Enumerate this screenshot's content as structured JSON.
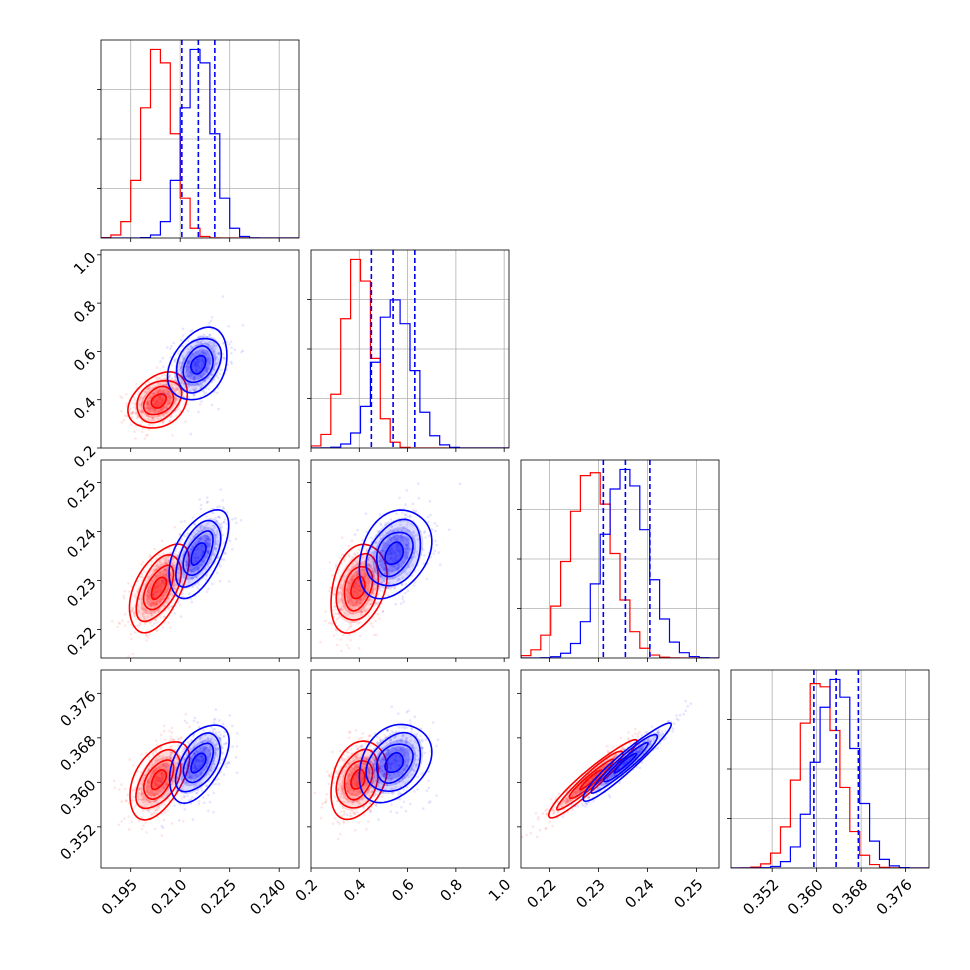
{
  "chart_data": {
    "type": "corner",
    "params": [
      {
        "ticks": [
          "0.195",
          "0.210",
          "0.225",
          "0.240"
        ],
        "range": [
          0.186,
          0.246
        ]
      },
      {
        "ticks": [
          "0.2",
          "0.4",
          "0.6",
          "0.8",
          "1.0"
        ],
        "range": [
          0.2,
          1.02
        ]
      },
      {
        "ticks": [
          "0.22",
          "0.23",
          "0.24",
          "0.25"
        ],
        "range": [
          0.2142,
          0.2546
        ]
      },
      {
        "ticks": [
          "0.352",
          "0.360",
          "0.368",
          "0.376"
        ],
        "range": [
          0.3446,
          0.3802
        ]
      }
    ],
    "series": [
      {
        "color": "#ff0000",
        "mean": [
          0.2035,
          0.395,
          0.2285,
          0.3605
        ],
        "sd": [
          0.0045,
          0.058,
          0.0045,
          0.0035
        ],
        "corr": [
          [
            1,
            0.3,
            0.55,
            0.5
          ],
          [
            0.3,
            1,
            0.3,
            0.3
          ],
          [
            0.55,
            0.3,
            1,
            0.95
          ],
          [
            0.5,
            0.3,
            0.95,
            1
          ]
        ]
      },
      {
        "color": "#0000ff",
        "mean": [
          0.2155,
          0.545,
          0.2355,
          0.3635
        ],
        "sd": [
          0.0045,
          0.075,
          0.0045,
          0.0035
        ],
        "corr": [
          [
            1,
            0.3,
            0.55,
            0.5
          ],
          [
            0.3,
            1,
            0.3,
            0.3
          ],
          [
            0.55,
            0.3,
            1,
            0.95
          ],
          [
            0.5,
            0.3,
            0.95,
            1
          ]
        ]
      }
    ],
    "quantile_lines": {
      "color": "#0000ff",
      "style": "dashed",
      "values": [
        [
          0.2105,
          0.2155,
          0.2205
        ],
        [
          0.45,
          0.54,
          0.63
        ],
        [
          0.231,
          0.2355,
          0.2405
        ],
        [
          0.3595,
          0.3635,
          0.3675
        ]
      ]
    },
    "histogram_bins": 20,
    "grid": true,
    "legend": "none"
  }
}
